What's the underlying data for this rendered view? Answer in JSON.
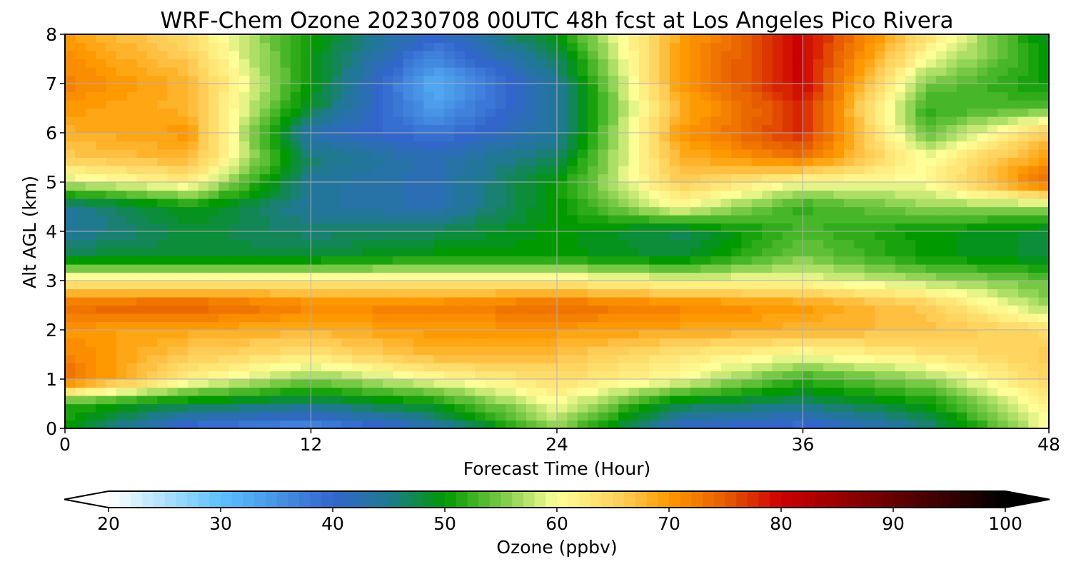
{
  "chart_data": {
    "type": "heatmap",
    "title": "WRF-Chem Ozone  20230708 00UTC 48h fcst at Los Angeles Pico Rivera",
    "xlabel": "Forecast Time (Hour)",
    "ylabel": "Alt AGL (km)",
    "xlim": [
      0,
      48
    ],
    "ylim": [
      0,
      8
    ],
    "x_ticks": [
      "0",
      "12",
      "24",
      "36",
      "48"
    ],
    "y_ticks": [
      "0",
      "1",
      "2",
      "3",
      "4",
      "5",
      "6",
      "7",
      "8"
    ],
    "grid": true,
    "x": [
      0,
      6,
      12,
      18,
      24,
      30,
      36,
      42,
      48
    ],
    "y": [
      0,
      0.5,
      1,
      1.5,
      2,
      2.5,
      3,
      3.5,
      4,
      4.5,
      5,
      5.5,
      6,
      6.5,
      7,
      7.5,
      8
    ],
    "z_unit": "ppbv",
    "z": [
      [
        50,
        38,
        35,
        42,
        56,
        40,
        38,
        45,
        60
      ],
      [
        52,
        48,
        46,
        50,
        60,
        48,
        46,
        50,
        62
      ],
      [
        74,
        62,
        55,
        60,
        64,
        60,
        52,
        56,
        65
      ],
      [
        72,
        66,
        63,
        68,
        67,
        63,
        60,
        63,
        66
      ],
      [
        70,
        69,
        68,
        70,
        70,
        69,
        68,
        67,
        64
      ],
      [
        74,
        75,
        72,
        72,
        74,
        72,
        70,
        66,
        56
      ],
      [
        62,
        62,
        62,
        62,
        62,
        60,
        60,
        57,
        54
      ],
      [
        48,
        48,
        48,
        50,
        50,
        48,
        55,
        50,
        48
      ],
      [
        44,
        48,
        46,
        47,
        50,
        47,
        53,
        50,
        48
      ],
      [
        44,
        50,
        44,
        42,
        50,
        60,
        52,
        56,
        56
      ],
      [
        58,
        62,
        44,
        42,
        50,
        66,
        60,
        60,
        74
      ],
      [
        66,
        68,
        46,
        42,
        47,
        68,
        73,
        60,
        70
      ],
      [
        68,
        70,
        42,
        38,
        44,
        70,
        78,
        54,
        66
      ],
      [
        70,
        68,
        48,
        34,
        44,
        68,
        78,
        52,
        54
      ],
      [
        72,
        68,
        50,
        32,
        44,
        70,
        80,
        55,
        50
      ],
      [
        71,
        66,
        50,
        36,
        47,
        70,
        80,
        60,
        50
      ],
      [
        70,
        64,
        50,
        40,
        50,
        69,
        80,
        64,
        48
      ]
    ],
    "colorbar": {
      "label": "Ozone  (ppbv)",
      "min": 20,
      "max": 100,
      "ticks": [
        "20",
        "30",
        "40",
        "50",
        "60",
        "70",
        "80",
        "90",
        "100"
      ],
      "extend": "both",
      "stops": [
        {
          "v": 20,
          "c": "#ffffff"
        },
        {
          "v": 30,
          "c": "#5cc1ff"
        },
        {
          "v": 40,
          "c": "#3366cc"
        },
        {
          "v": 45,
          "c": "#1f7a8f"
        },
        {
          "v": 50,
          "c": "#009900"
        },
        {
          "v": 55,
          "c": "#77c944"
        },
        {
          "v": 60,
          "c": "#ffff99"
        },
        {
          "v": 66,
          "c": "#ffcc55"
        },
        {
          "v": 70,
          "c": "#ff9900"
        },
        {
          "v": 75,
          "c": "#e65c00"
        },
        {
          "v": 80,
          "c": "#cc0000"
        },
        {
          "v": 90,
          "c": "#660000"
        },
        {
          "v": 100,
          "c": "#000000"
        }
      ]
    }
  }
}
